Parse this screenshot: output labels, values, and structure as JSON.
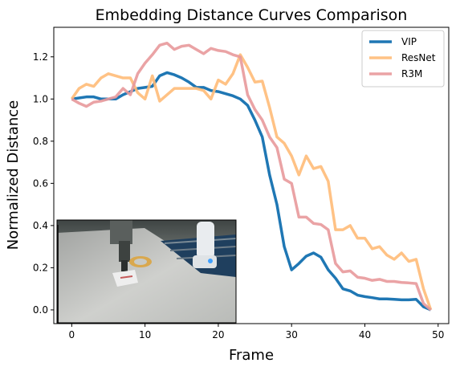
{
  "chart_data": {
    "type": "line",
    "title": "Embedding Distance Curves Comparison",
    "xlabel": "Frame",
    "ylabel": "Normalized Distance",
    "xlim": [
      -2.45,
      51.45
    ],
    "ylim": [
      -0.065,
      1.34
    ],
    "xticks": [
      0,
      10,
      20,
      30,
      40,
      50
    ],
    "yticks": [
      0.0,
      0.2,
      0.4,
      0.6,
      0.8,
      1.0,
      1.2
    ],
    "ytick_labels": [
      "0.0",
      "0.2",
      "0.4",
      "0.6",
      "0.8",
      "1.0",
      "1.2"
    ],
    "grid": false,
    "legend_position": "upper right",
    "inset": "robot-arm-photo (lower left)",
    "series": [
      {
        "name": "VIP",
        "color": "#1f77b4",
        "alpha": 1.0,
        "x": [
          0,
          1,
          2,
          3,
          4,
          5,
          6,
          7,
          8,
          9,
          10,
          11,
          12,
          13,
          14,
          15,
          16,
          17,
          18,
          19,
          20,
          21,
          22,
          23,
          24,
          25,
          26,
          27,
          28,
          29,
          30,
          31,
          32,
          33,
          34,
          35,
          36,
          37,
          38,
          39,
          40,
          41,
          42,
          43,
          44,
          45,
          46,
          47,
          48,
          49
        ],
        "values": [
          1.0,
          1.005,
          1.01,
          1.01,
          1.0,
          1.0,
          1.0,
          1.02,
          1.035,
          1.05,
          1.055,
          1.06,
          1.11,
          1.125,
          1.115,
          1.1,
          1.08,
          1.055,
          1.055,
          1.04,
          1.035,
          1.025,
          1.015,
          1.0,
          0.97,
          0.9,
          0.82,
          0.64,
          0.5,
          0.3,
          0.19,
          0.22,
          0.255,
          0.27,
          0.25,
          0.19,
          0.15,
          0.1,
          0.09,
          0.07,
          0.063,
          0.058,
          0.052,
          0.052,
          0.05,
          0.048,
          0.048,
          0.05,
          0.015,
          0.0
        ]
      },
      {
        "name": "ResNet",
        "color": "#ffbb78",
        "alpha": 0.9,
        "x": [
          0,
          1,
          2,
          3,
          4,
          5,
          6,
          7,
          8,
          9,
          10,
          11,
          12,
          13,
          14,
          15,
          16,
          17,
          18,
          19,
          20,
          21,
          22,
          23,
          24,
          25,
          26,
          27,
          28,
          29,
          30,
          31,
          32,
          33,
          34,
          35,
          36,
          37,
          38,
          39,
          40,
          41,
          42,
          43,
          44,
          45,
          46,
          47,
          48,
          49
        ],
        "values": [
          1.0,
          1.05,
          1.07,
          1.06,
          1.1,
          1.12,
          1.11,
          1.1,
          1.1,
          1.03,
          1.0,
          1.11,
          0.99,
          1.02,
          1.05,
          1.05,
          1.05,
          1.05,
          1.04,
          1.0,
          1.09,
          1.07,
          1.12,
          1.21,
          1.15,
          1.08,
          1.085,
          0.96,
          0.82,
          0.79,
          0.73,
          0.64,
          0.73,
          0.67,
          0.68,
          0.61,
          0.38,
          0.38,
          0.4,
          0.34,
          0.34,
          0.29,
          0.3,
          0.26,
          0.24,
          0.27,
          0.23,
          0.24,
          0.1,
          0.0
        ]
      },
      {
        "name": "R3M",
        "color": "#e8999b",
        "alpha": 0.9,
        "x": [
          0,
          1,
          2,
          3,
          4,
          5,
          6,
          7,
          8,
          9,
          10,
          11,
          12,
          13,
          14,
          15,
          16,
          17,
          18,
          19,
          20,
          21,
          22,
          23,
          24,
          25,
          26,
          27,
          28,
          29,
          30,
          31,
          32,
          33,
          34,
          35,
          36,
          37,
          38,
          39,
          40,
          41,
          42,
          43,
          44,
          45,
          46,
          47,
          48,
          49
        ],
        "values": [
          1.0,
          0.98,
          0.965,
          0.985,
          0.99,
          1.0,
          1.01,
          1.05,
          1.02,
          1.12,
          1.17,
          1.21,
          1.255,
          1.265,
          1.235,
          1.25,
          1.255,
          1.235,
          1.215,
          1.24,
          1.23,
          1.225,
          1.21,
          1.2,
          1.02,
          0.95,
          0.9,
          0.82,
          0.77,
          0.62,
          0.6,
          0.44,
          0.44,
          0.41,
          0.405,
          0.38,
          0.22,
          0.18,
          0.185,
          0.155,
          0.15,
          0.14,
          0.145,
          0.135,
          0.135,
          0.13,
          0.128,
          0.125,
          0.03,
          0.0
        ]
      }
    ]
  }
}
